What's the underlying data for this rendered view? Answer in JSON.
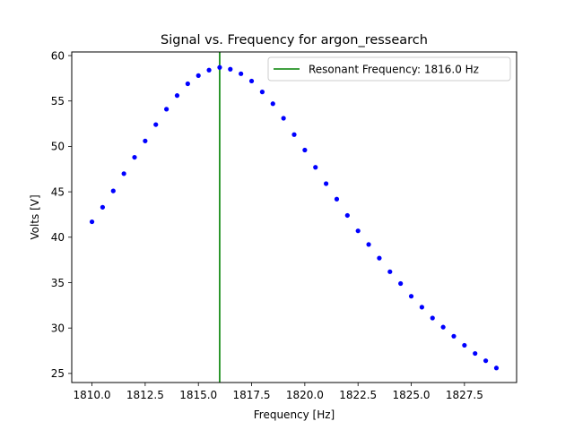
{
  "chart_data": {
    "type": "scatter",
    "title": "Signal vs. Frequency for argon_ressearch",
    "xlabel": "Frequency [Hz]",
    "ylabel": "Volts [V]",
    "xlim": [
      1809.05,
      1829.95
    ],
    "ylim": [
      24.0,
      60.4
    ],
    "xticks": [
      1810.0,
      1812.5,
      1815.0,
      1817.5,
      1820.0,
      1822.5,
      1825.0,
      1827.5
    ],
    "xtick_labels": [
      "1810.0",
      "1812.5",
      "1815.0",
      "1817.5",
      "1820.0",
      "1822.5",
      "1825.0",
      "1827.5"
    ],
    "yticks": [
      25,
      30,
      35,
      40,
      45,
      50,
      55,
      60
    ],
    "ytick_labels": [
      "25",
      "30",
      "35",
      "40",
      "45",
      "50",
      "55",
      "60"
    ],
    "grid": false,
    "legend_position": "top-right",
    "series": [
      {
        "marker": "dot",
        "color": "#0000ff",
        "x": [
          1810.0,
          1810.5,
          1811.0,
          1811.5,
          1812.0,
          1812.5,
          1813.0,
          1813.5,
          1814.0,
          1814.5,
          1815.0,
          1815.5,
          1816.0,
          1816.5,
          1817.0,
          1817.5,
          1818.0,
          1818.5,
          1819.0,
          1819.5,
          1820.0,
          1820.5,
          1821.0,
          1821.5,
          1822.0,
          1822.5,
          1823.0,
          1823.5,
          1824.0,
          1824.5,
          1825.0,
          1825.5,
          1826.0,
          1826.5,
          1827.0,
          1827.5,
          1828.0,
          1828.5,
          1829.0
        ],
        "y": [
          41.7,
          43.3,
          45.1,
          47.0,
          48.8,
          50.6,
          52.4,
          54.1,
          55.6,
          56.9,
          57.8,
          58.4,
          58.7,
          58.5,
          58.0,
          57.2,
          56.0,
          54.7,
          53.1,
          51.3,
          49.6,
          47.7,
          45.9,
          44.2,
          42.4,
          40.7,
          39.2,
          37.7,
          36.2,
          34.9,
          33.5,
          32.3,
          31.1,
          30.1,
          29.1,
          28.1,
          27.2,
          26.4,
          25.6
        ]
      }
    ],
    "vline": {
      "name": "Resonant Frequency: 1816.0 Hz",
      "x": 1816.0,
      "color": "#008000"
    }
  }
}
